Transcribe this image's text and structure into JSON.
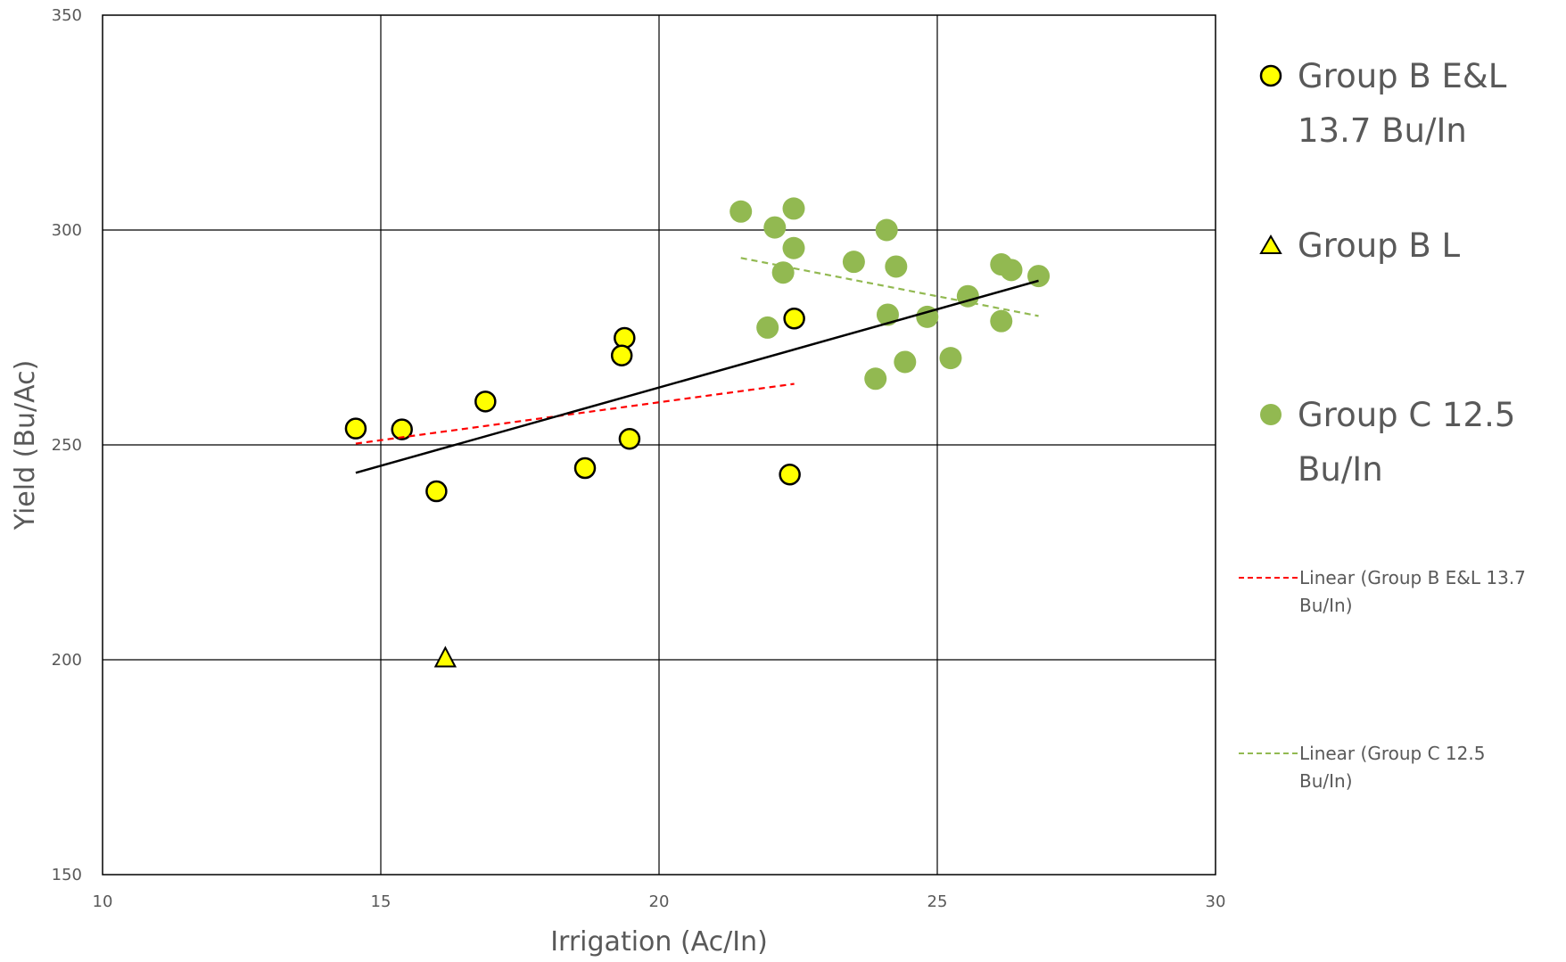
{
  "chart_data": {
    "type": "scatter",
    "title": "",
    "xlabel": "Irrigation (Ac/In)",
    "ylabel": "Yield (Bu/Ac)",
    "xlim": [
      10,
      30
    ],
    "ylim": [
      150,
      350
    ],
    "x_ticks": [
      "10",
      "15",
      "20",
      "25",
      "30"
    ],
    "y_ticks": [
      "150",
      "200",
      "250",
      "300",
      "350"
    ],
    "grid": true,
    "legend_position": "right",
    "series": [
      {
        "name": "Group B E&L  13.7 Bu/In",
        "marker": "circle",
        "color": "#ffff00",
        "edge_color": "#000000",
        "points": [
          [
            14.55,
            253.8
          ],
          [
            15.38,
            253.6
          ],
          [
            16.0,
            239.2
          ],
          [
            16.88,
            260.1
          ],
          [
            18.67,
            244.6
          ],
          [
            19.38,
            274.9
          ],
          [
            19.33,
            270.8
          ],
          [
            19.47,
            251.4
          ],
          [
            22.43,
            279.4
          ],
          [
            22.35,
            243.1
          ]
        ]
      },
      {
        "name": "Group B L",
        "marker": "triangle",
        "color": "#ffff00",
        "edge_color": "#000000",
        "points": [
          [
            16.16,
            200.3
          ]
        ]
      },
      {
        "name": "Group C  12.5 Bu/In",
        "marker": "circle",
        "color": "#92b951",
        "points": [
          [
            21.47,
            304.3
          ],
          [
            22.08,
            300.6
          ],
          [
            22.42,
            305.0
          ],
          [
            22.42,
            295.8
          ],
          [
            22.23,
            290.1
          ],
          [
            21.95,
            277.3
          ],
          [
            23.5,
            292.6
          ],
          [
            24.09,
            300.0
          ],
          [
            24.26,
            291.5
          ],
          [
            24.11,
            280.3
          ],
          [
            24.82,
            279.8
          ],
          [
            23.89,
            265.4
          ],
          [
            24.42,
            269.3
          ],
          [
            25.24,
            270.2
          ],
          [
            25.55,
            284.6
          ],
          [
            26.15,
            292.0
          ],
          [
            26.33,
            290.7
          ],
          [
            26.82,
            289.3
          ],
          [
            26.15,
            278.8
          ]
        ]
      }
    ],
    "trendlines": [
      {
        "name": "Linear (Group B E&L  13.7 Bu/In)",
        "color": "#ff0000",
        "style": "dashed",
        "x": [
          14.55,
          22.43
        ],
        "y": [
          250.3,
          264.2
        ]
      },
      {
        "name": "Linear (Group C  12.5 Bu/In)",
        "color": "#92b951",
        "style": "dashed",
        "x": [
          21.47,
          26.82
        ],
        "y": [
          293.5,
          280.0
        ]
      },
      {
        "color": "#000000",
        "style": "solid",
        "x": [
          14.55,
          26.82
        ],
        "y": [
          243.5,
          288.2
        ]
      }
    ],
    "legend": {
      "item1_line1": "Group B E&L",
      "item1_line2": "13.7 Bu/In",
      "item2": "Group B L",
      "item3_line1": "Group C  12.5",
      "item3_line2": "Bu/In",
      "item4_line1": "Linear (Group B E&L  13.7",
      "item4_line2": "Bu/In)",
      "item5_line1": "Linear (Group C  12.5",
      "item5_line2": "Bu/In)"
    }
  }
}
